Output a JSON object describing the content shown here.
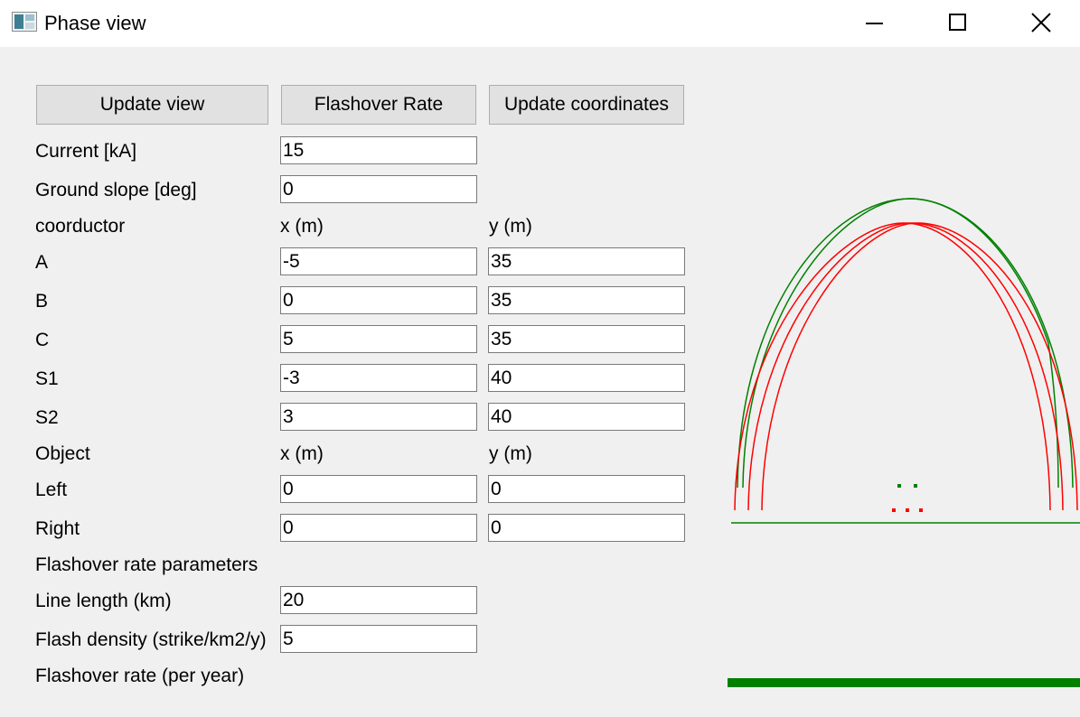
{
  "window": {
    "title": "Phase view",
    "icon": "app-window-icon",
    "controls": {
      "minimize": "minimize-icon",
      "maximize": "maximize-icon",
      "close": "close-icon"
    }
  },
  "toolbar": {
    "update_view": "Update view",
    "flashover_rate": "Flashover Rate",
    "update_coordinates": "Update coordinates"
  },
  "params": {
    "current_label": "Current [kA]",
    "current_value": "15",
    "slope_label": "Ground slope [deg]",
    "slope_value": "0"
  },
  "conductors": {
    "header": {
      "name": "coorductor",
      "x": "x (m)",
      "y": "y (m)"
    },
    "rows": [
      {
        "name": "A",
        "x": "-5",
        "y": "35"
      },
      {
        "name": "B",
        "x": "0",
        "y": "35"
      },
      {
        "name": "C",
        "x": "5",
        "y": "35"
      },
      {
        "name": "S1",
        "x": "-3",
        "y": "40"
      },
      {
        "name": "S2",
        "x": "3",
        "y": "40"
      }
    ]
  },
  "objects": {
    "header": {
      "name": "Object",
      "x": "x (m)",
      "y": "y (m)"
    },
    "rows": [
      {
        "name": "Left",
        "x": "0",
        "y": "0"
      },
      {
        "name": "Right",
        "x": "0",
        "y": "0"
      }
    ]
  },
  "flashover": {
    "section_label": "Flashover rate parameters",
    "length_label": "Line length (km)",
    "length_value": "20",
    "density_label": "Flash density (strike/km2/y)",
    "density_value": "5",
    "rate_label": "Flashover rate (per year)"
  },
  "plot_colors": {
    "phase": "#ff0000",
    "shield": "#008000",
    "ground": "#008000"
  }
}
